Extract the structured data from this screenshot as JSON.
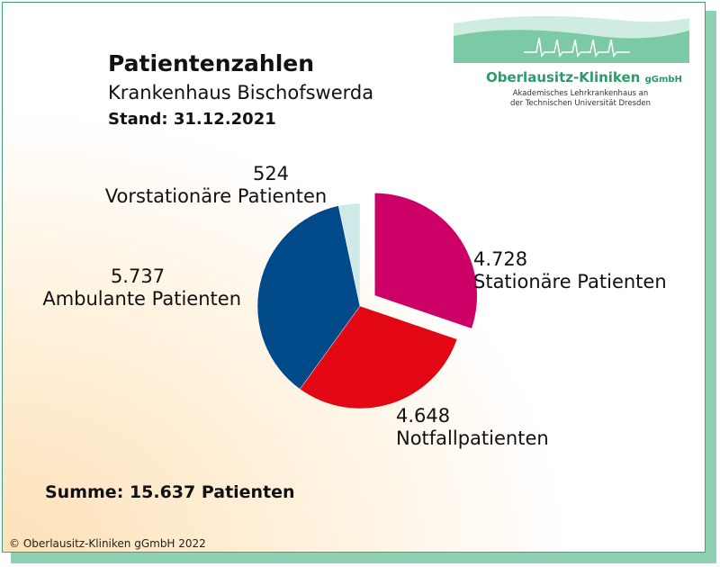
{
  "header": {
    "title": "Patientenzahlen",
    "subtitle": "Krankenhaus Bischofswerda",
    "stand": "Stand: 31.12.2021"
  },
  "logo": {
    "name": "Oberlausitz-Kliniken",
    "suffix": "gGmbH",
    "sub_line1": "Akademisches Lehrkrankenhaus an",
    "sub_line2": "der Technischen Universität Dresden",
    "color": "#2e9a6a"
  },
  "chart_data": {
    "type": "pie",
    "slices": [
      {
        "label": "Stationäre Patienten",
        "value_label": "4.728",
        "value": 4728,
        "color": "#cc0066",
        "exploded": true
      },
      {
        "label": "Notfallpatienten",
        "value_label": "4.648",
        "value": 4648,
        "color": "#e30613",
        "exploded": false
      },
      {
        "label": "Ambulante Patienten",
        "value_label": "5.737",
        "value": 5737,
        "color": "#004a8a",
        "exploded": false
      },
      {
        "label": "Vorstationäre Patienten",
        "value_label": "524",
        "value": 524,
        "color": "#cde9e8",
        "exploded": false
      }
    ]
  },
  "summary": "Summe: 15.637 Patienten",
  "footer": "© Oberlausitz-Kliniken gGmbH 2022"
}
